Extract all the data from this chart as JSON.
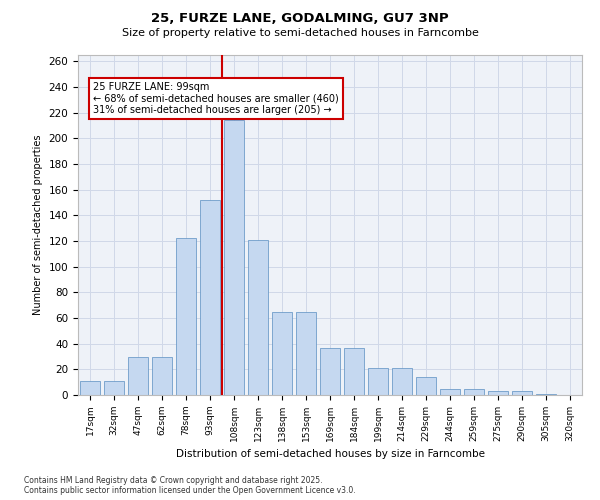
{
  "title1": "25, FURZE LANE, GODALMING, GU7 3NP",
  "title2": "Size of property relative to semi-detached houses in Farncombe",
  "xlabel": "Distribution of semi-detached houses by size in Farncombe",
  "ylabel": "Number of semi-detached properties",
  "categories": [
    "17sqm",
    "32sqm",
    "47sqm",
    "62sqm",
    "78sqm",
    "93sqm",
    "108sqm",
    "123sqm",
    "138sqm",
    "153sqm",
    "169sqm",
    "184sqm",
    "199sqm",
    "214sqm",
    "229sqm",
    "244sqm",
    "259sqm",
    "275sqm",
    "290sqm",
    "305sqm",
    "320sqm"
  ],
  "values": [
    11,
    11,
    30,
    30,
    122,
    152,
    214,
    121,
    65,
    65,
    37,
    37,
    21,
    21,
    14,
    5,
    5,
    3,
    3,
    1,
    0
  ],
  "bar_color": "#c5d8f0",
  "bar_edge_color": "#5a8fc2",
  "bar_edge_width": 0.5,
  "vline_x_idx": 6,
  "vline_color": "#cc0000",
  "annotation_text": "25 FURZE LANE: 99sqm\n← 68% of semi-detached houses are smaller (460)\n31% of semi-detached houses are larger (205) →",
  "annotation_box_color": "#ffffff",
  "annotation_box_edge": "#cc0000",
  "ylim": [
    0,
    265
  ],
  "yticks": [
    0,
    20,
    40,
    60,
    80,
    100,
    120,
    140,
    160,
    180,
    200,
    220,
    240,
    260
  ],
  "footnote": "Contains HM Land Registry data © Crown copyright and database right 2025.\nContains public sector information licensed under the Open Government Licence v3.0.",
  "grid_color": "#d0d8e8",
  "bg_color": "#eef2f8"
}
